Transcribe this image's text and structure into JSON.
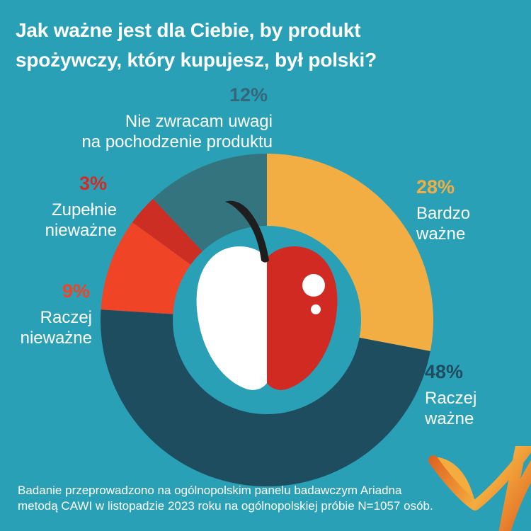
{
  "header": {
    "title_lines": [
      "Jak ważne jest dla Ciebie, by produkt",
      "spożywczy, który kupujesz, był polski?"
    ]
  },
  "chart_data": {
    "type": "pie",
    "subtype": "donut",
    "title": "Jak ważne jest dla Ciebie, by produkt spożywczy, który kupujesz, był polski?",
    "unit": "%",
    "start_angle_deg": 0,
    "direction": "clockwise",
    "hole_ratio": 0.566,
    "segments": [
      {
        "label": "Bardzo ważne",
        "value": 28,
        "pct": "28%",
        "color": "#F2AE43",
        "label_color": "#F2AE43",
        "label_lines": [
          "Bardzo",
          "ważne"
        ]
      },
      {
        "label": "Raczej ważne",
        "value": 48,
        "pct": "48%",
        "color": "#1F4D60",
        "label_color": "#1F4D60",
        "label_lines": [
          "Raczej",
          "ważne"
        ]
      },
      {
        "label": "Raczej nieważne",
        "value": 9,
        "pct": "9%",
        "color": "#F04426",
        "label_color": "#F04426",
        "label_lines": [
          "Raczej",
          "nieważne"
        ]
      },
      {
        "label": "Zupełnie nieważne",
        "value": 3,
        "pct": "3%",
        "color": "#CC2E24",
        "label_color": "#D32A23",
        "label_lines": [
          "Zupełnie",
          "nieważne"
        ]
      },
      {
        "label": "Nie zwracam uwagi na pochodzenie produktu",
        "value": 12,
        "pct": "12%",
        "color": "#33747F",
        "label_color": "#33687A",
        "label_lines": [
          "Nie zwracam uwagi",
          "na pochodzenie produktu"
        ]
      }
    ],
    "center_image": "apple-half-white-half-red"
  },
  "footer": {
    "lines": [
      "Badanie przeprowadzono na ogólnopolskim panelu badawczym Ariadna",
      "metodą CAWI w listopadzie 2023 roku na ogólnopolskiej próbie N=1057 osób."
    ]
  },
  "colors": {
    "background": "#2AA0B7",
    "apple_red": "#D02A23",
    "apple_white": "#FFFFFF",
    "apple_stem": "#1E1E1E",
    "logo_dark": "#DD5E1F",
    "logo_light": "#F4AC3E"
  }
}
